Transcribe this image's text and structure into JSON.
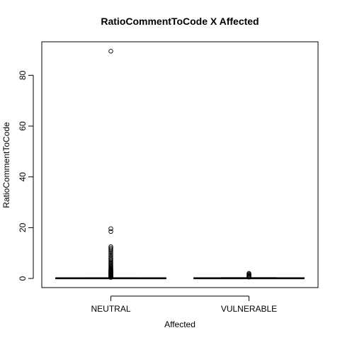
{
  "chart_data": {
    "type": "boxplot",
    "title": "RatioCommentToCode X Affected",
    "xlabel": "Affected",
    "ylabel": "RatioCommentToCode",
    "categories": [
      "NEUTRAL",
      "VULNERABLE"
    ],
    "ylim": [
      -3.6,
      93.2
    ],
    "yticks": [
      0,
      20,
      40,
      60,
      80
    ],
    "grid": false,
    "legend": "none",
    "series": [
      {
        "category": "NEUTRAL",
        "min": 0.0,
        "q1": 0.0,
        "median": 0.05,
        "q3": 0.12,
        "max": 0.3,
        "outliers": [
          0.4,
          0.5,
          0.6,
          0.7,
          0.8,
          0.9,
          1.0,
          1.1,
          1.2,
          1.3,
          1.4,
          1.5,
          1.6,
          1.7,
          1.8,
          1.9,
          2.0,
          2.1,
          2.2,
          2.3,
          2.4,
          2.5,
          2.6,
          2.7,
          2.8,
          2.9,
          3.0,
          3.2,
          3.4,
          3.6,
          3.8,
          4.0,
          4.3,
          4.6,
          5.0,
          5.4,
          5.8,
          6.2,
          6.6,
          7.0,
          7.5,
          8.0,
          8.6,
          9.2,
          9.8,
          10.4,
          11.0,
          11.5,
          12.0,
          12.5,
          18.5,
          19.6,
          89.5
        ]
      },
      {
        "category": "VULNERABLE",
        "min": 0.0,
        "q1": 0.0,
        "median": 0.05,
        "q3": 0.15,
        "max": 0.35,
        "outliers": [
          0.5,
          0.7,
          0.9,
          1.1,
          1.4,
          1.7,
          2.0
        ]
      }
    ]
  },
  "colors": {
    "background": "#ffffff",
    "foreground": "#000000"
  }
}
